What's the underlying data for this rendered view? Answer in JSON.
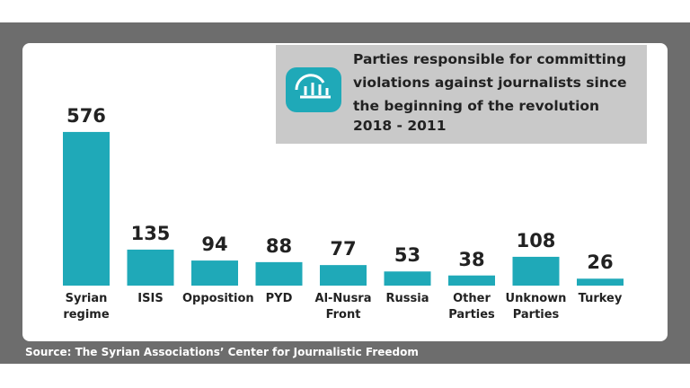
{
  "chart_data": {
    "type": "bar",
    "title": "Parties responsible for committing violations against journalists since the beginning of the revolution",
    "subtitle": "2018 - 2011",
    "categories": [
      "Syrian regime",
      "ISIS",
      "Opposition",
      "PYD",
      "Al-Nusra Front",
      "Russia",
      "Other Parties",
      "Unknown Parties",
      "Turkey"
    ],
    "values": [
      576,
      135,
      94,
      88,
      77,
      53,
      38,
      108,
      26
    ],
    "color": "#1fa9b8",
    "source": "Source: The Syrian Associations’ Center for Journalistic Freedom"
  }
}
